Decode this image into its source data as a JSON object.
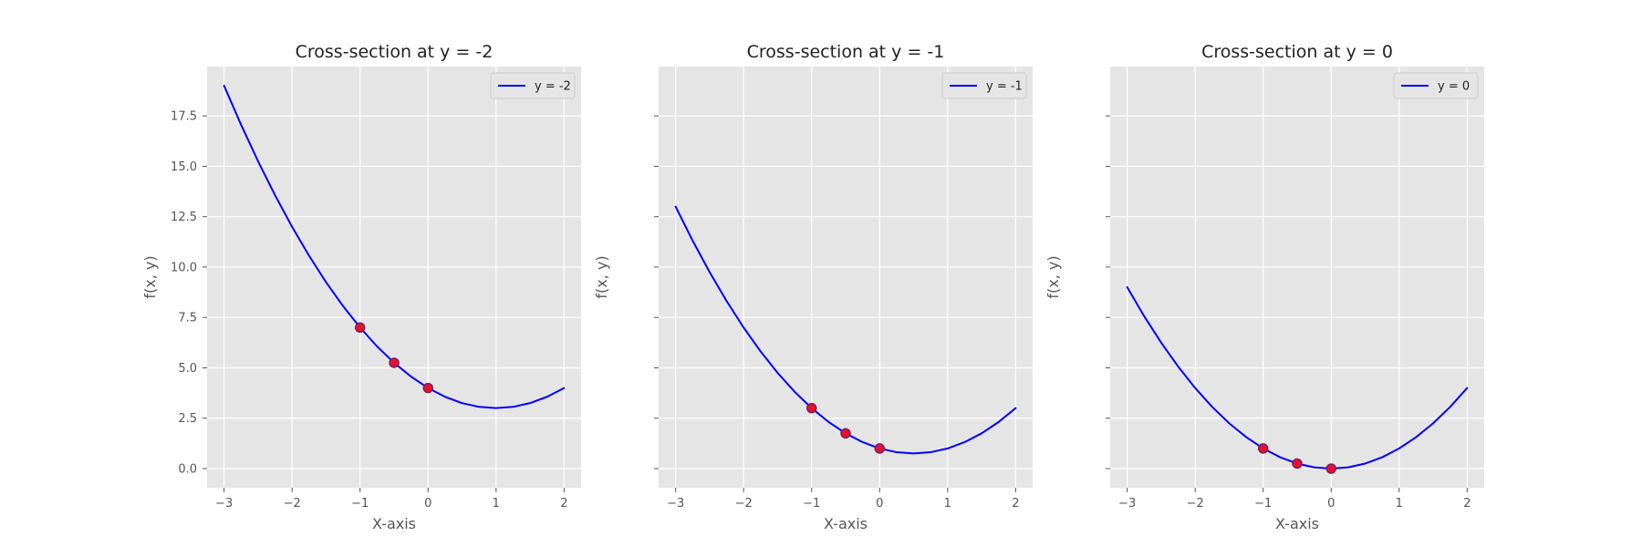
{
  "chart_data": [
    {
      "type": "line",
      "title": "Cross-section at y = -2",
      "xlabel": "X-axis",
      "ylabel": "f(x, y)",
      "xlim": [
        -3.25,
        2.25
      ],
      "ylim": [
        -0.95,
        19.95
      ],
      "xticks": [
        -3,
        -2,
        -1,
        0,
        1,
        2
      ],
      "xtick_labels": [
        "−3",
        "−2",
        "−1",
        "0",
        "1",
        "2"
      ],
      "yticks": [
        0,
        2.5,
        5,
        7.5,
        10,
        12.5,
        15,
        17.5
      ],
      "ytick_labels": [
        "0.0",
        "2.5",
        "5.0",
        "7.5",
        "10.0",
        "12.5",
        "15.0",
        "17.5"
      ],
      "show_ytick_labels": true,
      "grid": true,
      "legend_position": "top-right",
      "series": [
        {
          "name": "y = -2",
          "kind": "line",
          "color": "#0000ff",
          "x": [
            -3,
            -2.75,
            -2.5,
            -2.25,
            -2,
            -1.75,
            -1.5,
            -1.25,
            -1,
            -0.75,
            -0.5,
            -0.25,
            0,
            0.25,
            0.5,
            0.75,
            1,
            1.25,
            1.5,
            1.75,
            2
          ],
          "y": [
            19,
            17.0625,
            15.25,
            13.5625,
            12,
            10.5625,
            9.25,
            8.0625,
            7,
            6.0625,
            5.25,
            4.5625,
            4,
            3.5625,
            3.25,
            3.0625,
            3,
            3.0625,
            3.25,
            3.5625,
            4
          ]
        },
        {
          "name": "",
          "kind": "points",
          "color": "#e8112d",
          "edge_color": "#7a1f5a",
          "x": [
            -1,
            -0.5,
            0
          ],
          "y": [
            7,
            5.25,
            4
          ]
        }
      ]
    },
    {
      "type": "line",
      "title": "Cross-section at y = -1",
      "xlabel": "X-axis",
      "ylabel": "f(x, y)",
      "xlim": [
        -3.25,
        2.25
      ],
      "ylim": [
        -0.95,
        19.95
      ],
      "xticks": [
        -3,
        -2,
        -1,
        0,
        1,
        2
      ],
      "xtick_labels": [
        "−3",
        "−2",
        "−1",
        "0",
        "1",
        "2"
      ],
      "yticks": [
        0,
        2.5,
        5,
        7.5,
        10,
        12.5,
        15,
        17.5
      ],
      "ytick_labels": [],
      "show_ytick_labels": false,
      "grid": true,
      "legend_position": "top-right",
      "series": [
        {
          "name": "y = -1",
          "kind": "line",
          "color": "#0000ff",
          "x": [
            -3,
            -2.75,
            -2.5,
            -2.25,
            -2,
            -1.75,
            -1.5,
            -1.25,
            -1,
            -0.75,
            -0.5,
            -0.25,
            0,
            0.25,
            0.5,
            0.75,
            1,
            1.25,
            1.5,
            1.75,
            2
          ],
          "y": [
            13,
            11.3125,
            9.75,
            8.3125,
            7,
            5.8125,
            4.75,
            3.8125,
            3,
            2.3125,
            1.75,
            1.3125,
            1,
            0.8125,
            0.75,
            0.8125,
            1,
            1.3125,
            1.75,
            2.3125,
            3
          ]
        },
        {
          "name": "",
          "kind": "points",
          "color": "#e8112d",
          "edge_color": "#7a1f5a",
          "x": [
            -1,
            -0.5,
            0
          ],
          "y": [
            3,
            1.75,
            1
          ]
        }
      ]
    },
    {
      "type": "line",
      "title": "Cross-section at y = 0",
      "xlabel": "X-axis",
      "ylabel": "f(x, y)",
      "xlim": [
        -3.25,
        2.25
      ],
      "ylim": [
        -0.95,
        19.95
      ],
      "xticks": [
        -3,
        -2,
        -1,
        0,
        1,
        2
      ],
      "xtick_labels": [
        "−3",
        "−2",
        "−1",
        "0",
        "1",
        "2"
      ],
      "yticks": [
        0,
        2.5,
        5,
        7.5,
        10,
        12.5,
        15,
        17.5
      ],
      "ytick_labels": [],
      "show_ytick_labels": false,
      "grid": true,
      "legend_position": "top-right",
      "series": [
        {
          "name": "y = 0",
          "kind": "line",
          "color": "#0000ff",
          "x": [
            -3,
            -2.75,
            -2.5,
            -2.25,
            -2,
            -1.75,
            -1.5,
            -1.25,
            -1,
            -0.75,
            -0.5,
            -0.25,
            0,
            0.25,
            0.5,
            0.75,
            1,
            1.25,
            1.5,
            1.75,
            2
          ],
          "y": [
            9,
            7.5625,
            6.25,
            5.0625,
            4,
            3.0625,
            2.25,
            1.5625,
            1,
            0.5625,
            0.25,
            0.0625,
            0,
            0.0625,
            0.25,
            0.5625,
            1,
            1.5625,
            2.25,
            3.0625,
            4
          ]
        },
        {
          "name": "",
          "kind": "points",
          "color": "#e8112d",
          "edge_color": "#7a1f5a",
          "x": [
            -1,
            -0.5,
            0
          ],
          "y": [
            1,
            0.25,
            0
          ]
        }
      ]
    }
  ],
  "theme": {
    "plot_background": "#e5e5e5",
    "grid_color": "#ffffff",
    "tick_color": "#555555",
    "title_color": "#222222",
    "legend_background": "#e5e5e5",
    "legend_border": "#cccccc"
  }
}
